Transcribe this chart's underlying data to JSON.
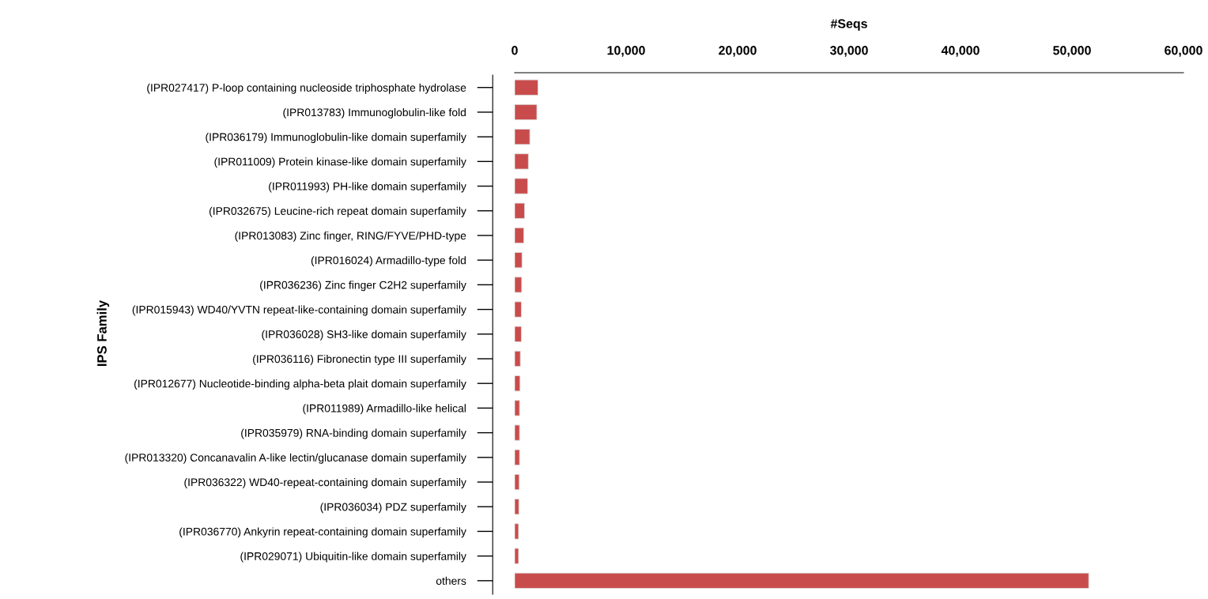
{
  "chart_data": {
    "type": "bar",
    "orientation": "horizontal",
    "xlabel": "#Seqs",
    "ylabel": "IPS Family",
    "categories": [
      "(IPR027417) P-loop containing nucleoside triphosphate hydrolase",
      "(IPR013783) Immunoglobulin-like fold",
      "(IPR036179) Immunoglobulin-like domain superfamily",
      "(IPR011009) Protein kinase-like domain superfamily",
      "(IPR011993) PH-like domain superfamily",
      "(IPR032675) Leucine-rich repeat domain superfamily",
      "(IPR013083) Zinc finger, RING/FYVE/PHD-type",
      "(IPR016024) Armadillo-type fold",
      "(IPR036236) Zinc finger C2H2 superfamily",
      "(IPR015943) WD40/YVTN repeat-like-containing domain superfamily",
      "(IPR036028) SH3-like domain superfamily",
      "(IPR036116) Fibronectin type III superfamily",
      "(IPR012677) Nucleotide-binding alpha-beta plait domain superfamily",
      "(IPR011989) Armadillo-like helical",
      "(IPR035979) RNA-binding domain superfamily",
      "(IPR013320) Concanavalin A-like lectin/glucanase domain superfamily",
      "(IPR036322) WD40-repeat-containing domain superfamily",
      "(IPR036034) PDZ superfamily",
      "(IPR036770) Ankyrin repeat-containing domain superfamily",
      "(IPR029071) Ubiquitin-like domain superfamily",
      "others"
    ],
    "values": [
      2090,
      1990,
      1360,
      1230,
      1170,
      890,
      820,
      660,
      630,
      600,
      600,
      510,
      480,
      440,
      440,
      440,
      410,
      380,
      350,
      350,
      51500
    ],
    "color": "#c94c4c",
    "xlim": [
      0,
      60000
    ],
    "xticks": [
      0,
      {
        "value": 10000,
        "label": "10,000"
      },
      {
        "value": 20000,
        "label": "20,000"
      },
      {
        "value": 30000,
        "label": "30,000"
      },
      {
        "value": 40000,
        "label": "40,000"
      },
      {
        "value": 50000,
        "label": "50,000"
      },
      {
        "value": 60000,
        "label": "60,000"
      }
    ],
    "grid": false,
    "legend": false
  }
}
